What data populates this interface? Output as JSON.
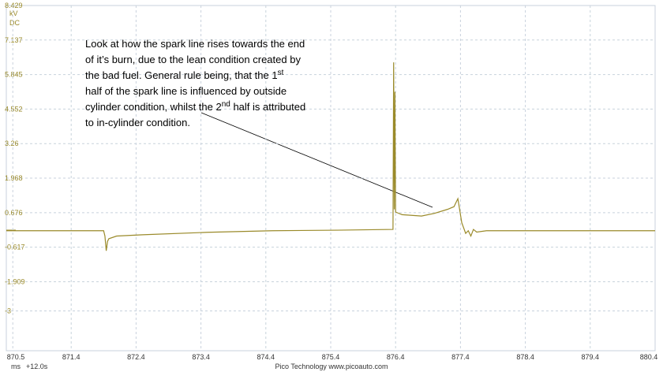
{
  "chart_data": {
    "type": "line",
    "y_unit": [
      "kV",
      "DC"
    ],
    "x_unit": "ms",
    "x_offset": "+12.0s",
    "footer": "Pico Technology  www.picoauto.com",
    "xlim": [
      870.4,
      880.4
    ],
    "xticks": [
      870.5,
      871.4,
      872.4,
      873.4,
      874.4,
      875.4,
      876.4,
      877.4,
      878.4,
      879.4,
      880.4
    ],
    "ylim": [
      -4.491,
      8.429
    ],
    "yticks": [
      8.429,
      7.137,
      5.845,
      4.552,
      3.26,
      1.968,
      0.676,
      -0.617,
      -1.909,
      -3.0
    ],
    "grid": true,
    "series": [
      {
        "color": "#9a8a2a",
        "x": [
          870.4,
          871.9,
          871.92,
          871.94,
          871.96,
          871.98,
          872.1,
          872.5,
          873.5,
          874.5,
          875.5,
          876.36,
          876.37,
          876.38,
          876.39,
          876.4,
          876.5,
          876.8,
          877.0,
          877.2,
          877.3,
          877.36,
          877.42,
          877.48,
          877.52,
          877.56,
          877.6,
          877.65,
          877.8,
          880.4
        ],
        "values": [
          0,
          0,
          -0.2,
          -0.75,
          -0.4,
          -0.3,
          -0.2,
          -0.15,
          -0.06,
          0.0,
          0.02,
          0.05,
          6.3,
          0.8,
          5.2,
          0.7,
          0.6,
          0.55,
          0.65,
          0.8,
          0.9,
          1.2,
          0.3,
          -0.1,
          0.0,
          -0.2,
          0.05,
          -0.05,
          0.0,
          0.0
        ]
      }
    ],
    "annotation": [
      [
        {
          "text": "Look at how the spark line rises towards the end"
        }
      ],
      [
        {
          "text": "of it’s burn, due to the lean condition created by"
        }
      ],
      [
        {
          "text": "the bad fuel.  General rule being, that the 1"
        },
        {
          "text": "st",
          "sup": true
        }
      ],
      [
        {
          "text": "half of the spark line is influenced by outside"
        }
      ],
      [
        {
          "text": "cylinder condition, whilst the 2"
        },
        {
          "text": "nd",
          "sup": true
        },
        {
          "text": " half is attributed"
        }
      ],
      [
        {
          "text": "to in-cylinder condition."
        }
      ]
    ]
  }
}
